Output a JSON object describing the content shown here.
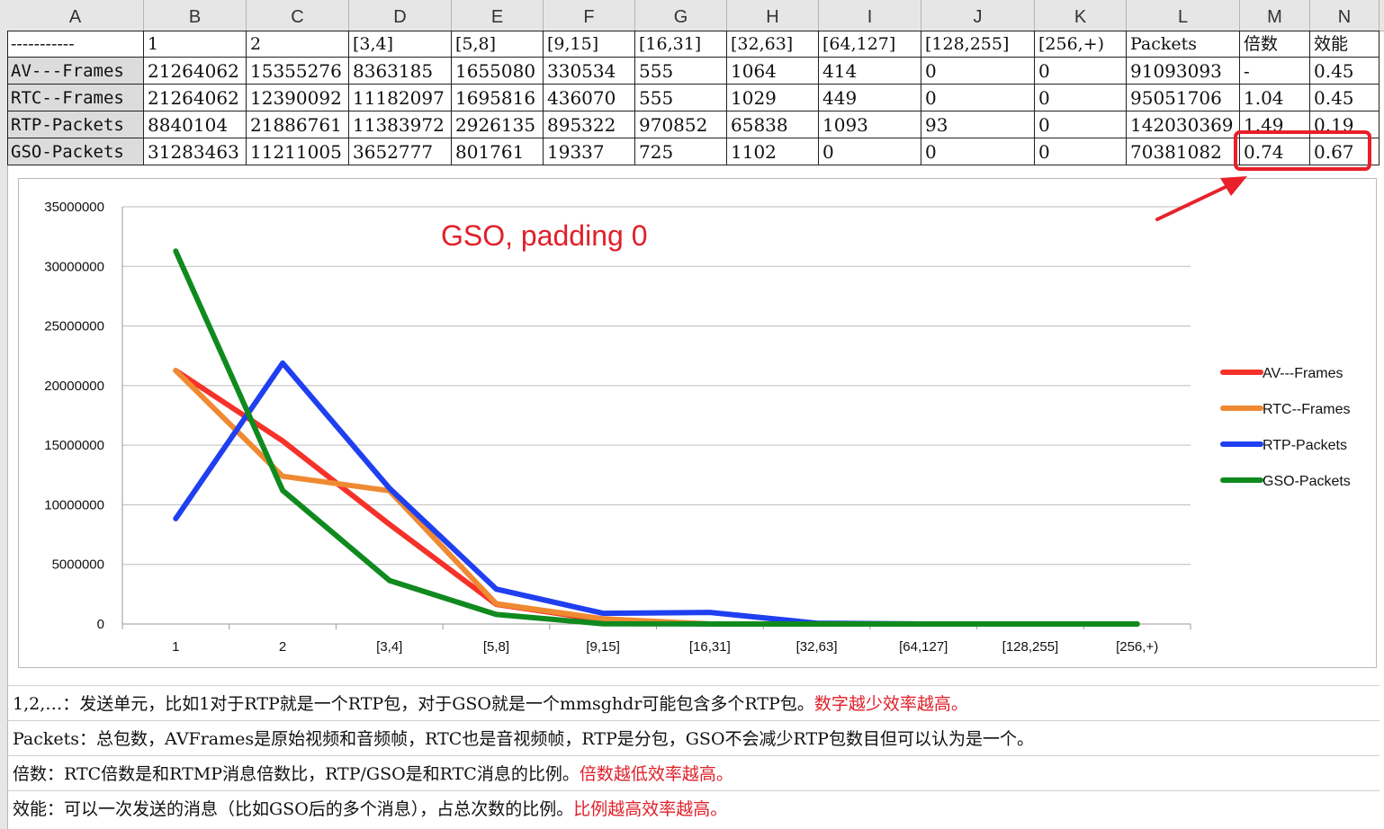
{
  "columns": [
    "A",
    "B",
    "C",
    "D",
    "E",
    "F",
    "G",
    "H",
    "I",
    "J",
    "K",
    "L",
    "M",
    "N"
  ],
  "table": {
    "header": [
      "-----------",
      "1",
      "2",
      "[3,4]",
      "[5,8]",
      "[9,15]",
      "[16,31]",
      "[32,63]",
      "[64,127]",
      "[128,255]",
      "[256,+)",
      "Packets",
      "倍数",
      "效能"
    ],
    "rows": [
      [
        "AV---Frames",
        "21264062",
        "15355276",
        "8363185",
        "1655080",
        "330534",
        "555",
        "1064",
        "414",
        "0",
        "0",
        "91093093",
        "-",
        "0.45"
      ],
      [
        "RTC--Frames",
        "21264062",
        "12390092",
        "11182097",
        "1695816",
        "436070",
        "555",
        "1029",
        "449",
        "0",
        "0",
        "95051706",
        "1.04",
        "0.45"
      ],
      [
        "RTP-Packets",
        "8840104",
        "21886761",
        "11383972",
        "2926135",
        "895322",
        "970852",
        "65838",
        "1093",
        "93",
        "0",
        "142030369",
        "1.49",
        "0.19"
      ],
      [
        "GSO-Packets",
        "31283463",
        "11211005",
        "3652777",
        "801761",
        "19337",
        "725",
        "1102",
        "0",
        "0",
        "0",
        "70381082",
        "0.74",
        "0.67"
      ]
    ]
  },
  "annotation": "GSO, padding 0",
  "chart_data": {
    "type": "line",
    "categories": [
      "1",
      "2",
      "[3,4]",
      "[5,8]",
      "[9,15]",
      "[16,31]",
      "[32,63]",
      "[64,127]",
      "[128,255]",
      "[256,+)"
    ],
    "ylim": [
      0,
      35000000
    ],
    "yticks": [
      "0",
      "5000000",
      "10000000",
      "15000000",
      "20000000",
      "25000000",
      "30000000",
      "35000000"
    ],
    "grid": true,
    "legend_position": "right",
    "series": [
      {
        "name": "AV---Frames",
        "color": "#f5322a",
        "values": [
          21264062,
          15355276,
          8363185,
          1655080,
          330534,
          555,
          1064,
          414,
          0,
          0
        ]
      },
      {
        "name": "RTC--Frames",
        "color": "#ef8a32",
        "values": [
          21264062,
          12390092,
          11182097,
          1695816,
          436070,
          555,
          1029,
          449,
          0,
          0
        ]
      },
      {
        "name": "RTP-Packets",
        "color": "#1f3ff0",
        "values": [
          8840104,
          21886761,
          11383972,
          2926135,
          895322,
          970852,
          65838,
          1093,
          93,
          0
        ]
      },
      {
        "name": "GSO-Packets",
        "color": "#108a1e",
        "values": [
          31283463,
          11211005,
          3652777,
          801761,
          19337,
          725,
          1102,
          0,
          0,
          0
        ]
      }
    ]
  },
  "notes": [
    {
      "text": "1,2,…：发送单元，比如1对于RTP就是一个RTP包，对于GSO就是一个mmsghdr可能包含多个RTP包。",
      "highlight": "数字越少效率越高。"
    },
    {
      "text": "Packets：总包数，AVFrames是原始视频和音频帧，RTC也是音视频帧，RTP是分包，GSO不会减少RTP包数目但可以认为是一个。",
      "highlight": ""
    },
    {
      "text": "倍数：RTC倍数是和RTMP消息倍数比，RTP/GSO是和RTC消息的比例。",
      "highlight": "倍数越低效率越高。"
    },
    {
      "text": "效能：可以一次发送的消息（比如GSO后的多个消息），占总次数的比例。",
      "highlight": "比例越高效率越高。"
    }
  ]
}
